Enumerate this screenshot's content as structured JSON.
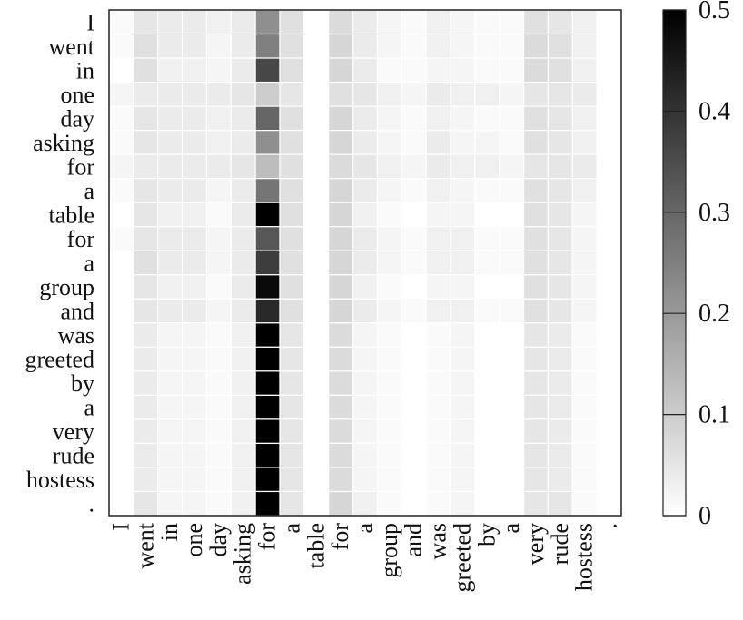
{
  "chart_data": {
    "type": "heatmap",
    "title": "",
    "xlabel": "",
    "ylabel": "",
    "x_labels": [
      "I",
      "went",
      "in",
      "one",
      "day",
      "asking",
      "for",
      "a",
      "table",
      "for",
      "a",
      "group",
      "and",
      "was",
      "greeted",
      "by",
      "a",
      "very",
      "rude",
      "hostess",
      "."
    ],
    "y_labels": [
      "I",
      "went",
      "in",
      "one",
      "day",
      "asking",
      "for",
      "a",
      "table",
      "for",
      "a",
      "group",
      "and",
      "was",
      "greeted",
      "by",
      "a",
      "very",
      "rude",
      "hostess",
      "."
    ],
    "values": [
      [
        0.01,
        0.05,
        0.04,
        0.04,
        0.03,
        0.04,
        0.22,
        0.06,
        0.0,
        0.07,
        0.04,
        0.02,
        0.01,
        0.03,
        0.02,
        0.01,
        0.01,
        0.06,
        0.05,
        0.03,
        0.0
      ],
      [
        0.01,
        0.06,
        0.04,
        0.04,
        0.02,
        0.04,
        0.25,
        0.06,
        0.0,
        0.08,
        0.04,
        0.02,
        0.01,
        0.03,
        0.02,
        0.01,
        0.01,
        0.07,
        0.06,
        0.03,
        0.0
      ],
      [
        0.0,
        0.06,
        0.03,
        0.03,
        0.02,
        0.04,
        0.36,
        0.06,
        0.0,
        0.08,
        0.04,
        0.01,
        0.01,
        0.02,
        0.02,
        0.01,
        0.01,
        0.07,
        0.06,
        0.03,
        0.0
      ],
      [
        0.02,
        0.04,
        0.04,
        0.04,
        0.04,
        0.05,
        0.1,
        0.05,
        0.0,
        0.06,
        0.05,
        0.03,
        0.02,
        0.04,
        0.03,
        0.03,
        0.02,
        0.05,
        0.05,
        0.04,
        0.0
      ],
      [
        0.01,
        0.05,
        0.04,
        0.04,
        0.03,
        0.04,
        0.3,
        0.06,
        0.0,
        0.08,
        0.04,
        0.02,
        0.01,
        0.03,
        0.02,
        0.01,
        0.01,
        0.06,
        0.05,
        0.03,
        0.0
      ],
      [
        0.01,
        0.05,
        0.04,
        0.04,
        0.03,
        0.04,
        0.22,
        0.06,
        0.0,
        0.08,
        0.04,
        0.02,
        0.01,
        0.04,
        0.02,
        0.02,
        0.01,
        0.06,
        0.05,
        0.03,
        0.0
      ],
      [
        0.02,
        0.04,
        0.04,
        0.04,
        0.04,
        0.05,
        0.13,
        0.06,
        0.0,
        0.07,
        0.05,
        0.03,
        0.02,
        0.04,
        0.03,
        0.03,
        0.02,
        0.05,
        0.05,
        0.04,
        0.0
      ],
      [
        0.01,
        0.05,
        0.04,
        0.04,
        0.02,
        0.04,
        0.27,
        0.06,
        0.0,
        0.08,
        0.04,
        0.02,
        0.01,
        0.03,
        0.02,
        0.01,
        0.01,
        0.06,
        0.05,
        0.03,
        0.0
      ],
      [
        0.0,
        0.05,
        0.03,
        0.03,
        0.01,
        0.04,
        0.5,
        0.06,
        0.0,
        0.08,
        0.03,
        0.01,
        0.0,
        0.02,
        0.02,
        0.0,
        0.0,
        0.06,
        0.05,
        0.02,
        0.0
      ],
      [
        0.01,
        0.05,
        0.04,
        0.04,
        0.02,
        0.04,
        0.33,
        0.06,
        0.0,
        0.08,
        0.04,
        0.02,
        0.01,
        0.03,
        0.03,
        0.01,
        0.01,
        0.06,
        0.05,
        0.02,
        0.0
      ],
      [
        0.0,
        0.06,
        0.04,
        0.04,
        0.02,
        0.04,
        0.38,
        0.06,
        0.0,
        0.08,
        0.04,
        0.02,
        0.01,
        0.03,
        0.03,
        0.01,
        0.01,
        0.06,
        0.05,
        0.02,
        0.0
      ],
      [
        0.0,
        0.05,
        0.03,
        0.03,
        0.01,
        0.04,
        0.48,
        0.06,
        0.0,
        0.08,
        0.03,
        0.01,
        0.0,
        0.02,
        0.02,
        0.0,
        0.0,
        0.06,
        0.05,
        0.02,
        0.0
      ],
      [
        0.0,
        0.05,
        0.04,
        0.04,
        0.02,
        0.04,
        0.42,
        0.06,
        0.0,
        0.08,
        0.04,
        0.02,
        0.01,
        0.03,
        0.03,
        0.01,
        0.01,
        0.06,
        0.05,
        0.02,
        0.0
      ],
      [
        0.0,
        0.04,
        0.02,
        0.02,
        0.01,
        0.03,
        0.5,
        0.05,
        0.0,
        0.07,
        0.02,
        0.01,
        0.0,
        0.01,
        0.02,
        0.0,
        0.0,
        0.05,
        0.04,
        0.01,
        0.0
      ],
      [
        0.0,
        0.04,
        0.02,
        0.02,
        0.01,
        0.03,
        0.5,
        0.05,
        0.0,
        0.07,
        0.02,
        0.01,
        0.0,
        0.01,
        0.02,
        0.0,
        0.0,
        0.05,
        0.04,
        0.01,
        0.0
      ],
      [
        0.0,
        0.04,
        0.02,
        0.02,
        0.01,
        0.03,
        0.5,
        0.05,
        0.0,
        0.07,
        0.02,
        0.01,
        0.0,
        0.01,
        0.02,
        0.0,
        0.0,
        0.05,
        0.04,
        0.01,
        0.0
      ],
      [
        0.0,
        0.04,
        0.02,
        0.02,
        0.01,
        0.03,
        0.5,
        0.05,
        0.0,
        0.07,
        0.02,
        0.01,
        0.0,
        0.01,
        0.02,
        0.0,
        0.0,
        0.05,
        0.04,
        0.01,
        0.0
      ],
      [
        0.0,
        0.04,
        0.02,
        0.02,
        0.01,
        0.03,
        0.5,
        0.05,
        0.0,
        0.07,
        0.02,
        0.01,
        0.0,
        0.01,
        0.02,
        0.0,
        0.0,
        0.05,
        0.04,
        0.01,
        0.0
      ],
      [
        0.0,
        0.04,
        0.02,
        0.02,
        0.01,
        0.03,
        0.5,
        0.05,
        0.0,
        0.07,
        0.02,
        0.01,
        0.0,
        0.01,
        0.02,
        0.0,
        0.0,
        0.05,
        0.04,
        0.01,
        0.0
      ],
      [
        0.0,
        0.04,
        0.02,
        0.02,
        0.01,
        0.03,
        0.5,
        0.05,
        0.0,
        0.07,
        0.02,
        0.01,
        0.0,
        0.01,
        0.02,
        0.0,
        0.0,
        0.05,
        0.04,
        0.01,
        0.0
      ],
      [
        0.0,
        0.05,
        0.02,
        0.02,
        0.01,
        0.03,
        0.5,
        0.05,
        0.0,
        0.08,
        0.03,
        0.01,
        0.0,
        0.01,
        0.02,
        0.0,
        0.0,
        0.05,
        0.05,
        0.01,
        0.0
      ]
    ],
    "colorbar": {
      "min": 0,
      "max": 0.5,
      "ticks": [
        0,
        0.1,
        0.2,
        0.3,
        0.4,
        0.5
      ],
      "tick_labels": [
        "0",
        "0.1",
        "0.2",
        "0.3",
        "0.4",
        "0.5"
      ],
      "colormap": "greys",
      "low_color": "#ffffff",
      "high_color": "#000000"
    },
    "grid": false,
    "legend": "colorbar-right"
  }
}
